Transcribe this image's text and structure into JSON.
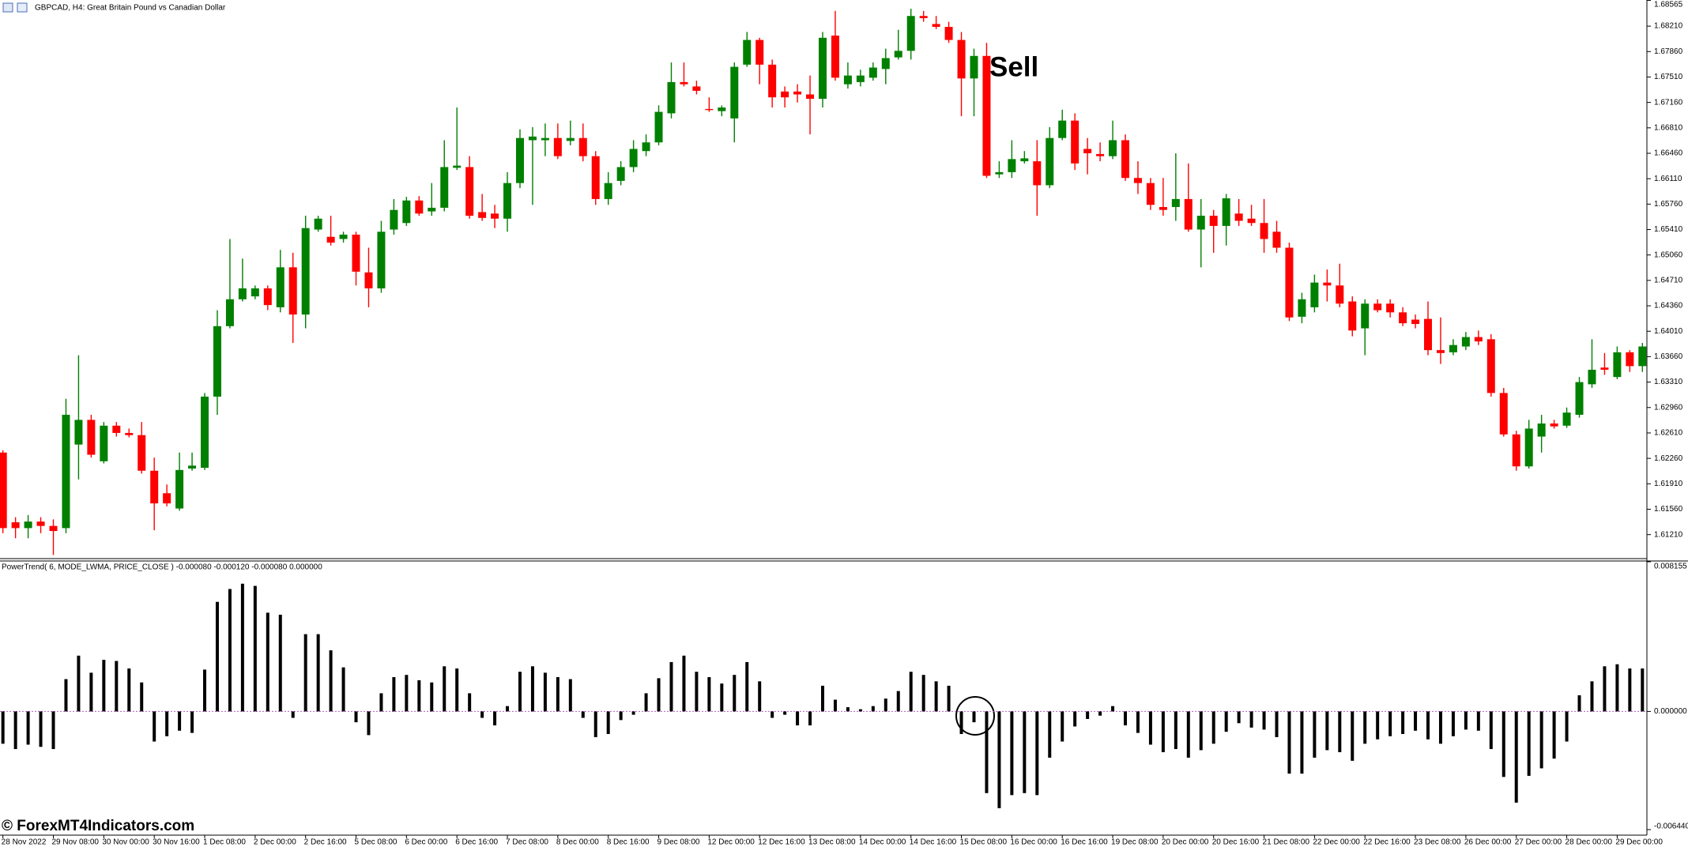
{
  "chart_data": [
    {
      "type": "candlestick",
      "title": "GBPCAD, H4:  Great Britain Pound vs Canadian Dollar",
      "annotation": "Sell",
      "up_color": "#008000",
      "down_color": "#ff0000",
      "categories": [
        "28 Nov 2022",
        null,
        null,
        null,
        "29 Nov 08:00",
        null,
        null,
        null,
        "30 Nov 00:00",
        null,
        null,
        null,
        "30 Nov 16:00",
        null,
        null,
        null,
        "1 Dec 08:00",
        null,
        null,
        null,
        "2 Dec 00:00",
        null,
        null,
        null,
        "2 Dec 16:00",
        null,
        null,
        null,
        "5 Dec 08:00",
        null,
        null,
        null,
        "6 Dec 00:00",
        null,
        null,
        null,
        "6 Dec 16:00",
        null,
        null,
        null,
        "7 Dec 08:00",
        null,
        null,
        null,
        "8 Dec 00:00",
        null,
        null,
        null,
        "8 Dec 16:00",
        null,
        null,
        null,
        "9 Dec 08:00",
        null,
        null,
        null,
        "12 Dec 00:00",
        null,
        null,
        null,
        "12 Dec 16:00",
        null,
        null,
        null,
        "13 Dec 08:00",
        null,
        null,
        null,
        "14 Dec 00:00",
        null,
        null,
        null,
        "14 Dec 16:00",
        null,
        null,
        null,
        "15 Dec 08:00",
        null,
        null,
        null,
        "16 Dec 00:00",
        null,
        null,
        null,
        "16 Dec 16:00",
        null,
        null,
        null,
        "19 Dec 08:00",
        null,
        null,
        null,
        "20 Dec 00:00",
        null,
        null,
        null,
        "20 Dec 16:00",
        null,
        null,
        null,
        "21 Dec 08:00",
        null,
        null,
        null,
        "22 Dec 00:00",
        null,
        null,
        null,
        "22 Dec 16:00",
        null,
        null,
        null,
        "23 Dec 08:00",
        null,
        null,
        null,
        "26 Dec 00:00",
        null,
        null,
        null,
        "27 Dec 00:00",
        null,
        null,
        null,
        "28 Dec 00:00",
        null,
        null,
        null,
        "29 Dec 00:00",
        null,
        null
      ],
      "open": [
        1.6234,
        1.6138,
        1.613,
        1.6139,
        1.6133,
        1.613,
        1.6245,
        1.6279,
        1.6222,
        1.6271,
        1.6261,
        1.6258,
        1.6209,
        1.6178,
        1.6157,
        1.6212,
        1.6213,
        1.6311,
        1.6408,
        1.6445,
        1.6449,
        1.646,
        1.6434,
        1.6489,
        1.6424,
        1.6541,
        1.6531,
        1.6528,
        1.6534,
        1.6482,
        1.646,
        1.6541,
        1.655,
        1.6581,
        1.6566,
        1.6571,
        1.6626,
        1.6627,
        1.6565,
        1.6563,
        1.6556,
        1.6605,
        1.6664,
        1.6664,
        1.6667,
        1.6663,
        1.6667,
        1.6642,
        1.6583,
        1.6608,
        1.6627,
        1.6649,
        1.6661,
        1.6701,
        1.6744,
        1.6738,
        1.6707,
        1.6704,
        1.6694,
        1.6768,
        1.6802,
        1.6768,
        1.6731,
        1.6731,
        1.6727,
        1.6721,
        1.6808,
        1.6741,
        1.6744,
        1.675,
        1.6762,
        1.6778,
        1.6787,
        1.6835,
        1.6824,
        1.682,
        1.6802,
        1.6749,
        1.678,
        1.6617,
        1.662,
        1.6635,
        1.6635,
        1.6602,
        1.6667,
        1.6691,
        1.6652,
        1.6645,
        1.6642,
        1.6664,
        1.6612,
        1.6605,
        1.6572,
        1.6572,
        1.6583,
        1.6541,
        1.656,
        1.6546,
        1.6563,
        1.6556,
        1.655,
        1.6538,
        1.6516,
        1.6421,
        1.6434,
        1.6468,
        1.6464,
        1.6442,
        1.6405,
        1.6439,
        1.6439,
        1.6427,
        1.6417,
        1.6418,
        1.6375,
        1.6372,
        1.638,
        1.6393,
        1.639,
        1.6316,
        1.6259,
        1.6215,
        1.6256,
        1.6274,
        1.6271,
        1.6286,
        1.6328,
        1.6351,
        1.6338,
        1.6372,
        1.6353
      ],
      "high": [
        1.6237,
        1.6145,
        1.6148,
        1.6145,
        1.6142,
        1.6308,
        1.6368,
        1.6286,
        1.6276,
        1.6276,
        1.6267,
        1.6276,
        1.6227,
        1.619,
        1.6234,
        1.6234,
        1.6316,
        1.643,
        1.6528,
        1.6501,
        1.6464,
        1.6464,
        1.6513,
        1.6509,
        1.656,
        1.656,
        1.656,
        1.6538,
        1.6538,
        1.6516,
        1.6553,
        1.6583,
        1.6586,
        1.6587,
        1.6605,
        1.6664,
        1.6709,
        1.6642,
        1.659,
        1.6575,
        1.662,
        1.6679,
        1.6682,
        1.6687,
        1.6687,
        1.6691,
        1.6687,
        1.6649,
        1.662,
        1.6635,
        1.6664,
        1.6672,
        1.6712,
        1.6771,
        1.6771,
        1.6746,
        1.6723,
        1.6712,
        1.6771,
        1.6813,
        1.6805,
        1.6775,
        1.6738,
        1.6741,
        1.6753,
        1.6813,
        1.6842,
        1.6771,
        1.6761,
        1.6771,
        1.679,
        1.6816,
        1.6845,
        1.6842,
        1.6835,
        1.6827,
        1.6813,
        1.679,
        1.6798,
        1.6635,
        1.6664,
        1.6649,
        1.6664,
        1.6682,
        1.6706,
        1.6701,
        1.6667,
        1.6661,
        1.6691,
        1.6672,
        1.6635,
        1.6612,
        1.6612,
        1.6646,
        1.6632,
        1.6583,
        1.6568,
        1.659,
        1.6583,
        1.6575,
        1.6583,
        1.6553,
        1.6523,
        1.6454,
        1.6479,
        1.6486,
        1.6494,
        1.6449,
        1.6445,
        1.6445,
        1.6445,
        1.6434,
        1.6424,
        1.6442,
        1.642,
        1.639,
        1.64,
        1.6402,
        1.6397,
        1.6323,
        1.6264,
        1.6279,
        1.6286,
        1.6279,
        1.6296,
        1.6338,
        1.639,
        1.6371,
        1.638,
        1.6375,
        1.6385
      ],
      "low": [
        1.6123,
        1.6116,
        1.6116,
        1.6123,
        1.6093,
        1.6123,
        1.6197,
        1.6227,
        1.6219,
        1.6256,
        1.6255,
        1.6205,
        1.6127,
        1.616,
        1.6154,
        1.6209,
        1.621,
        1.6286,
        1.6405,
        1.6442,
        1.6445,
        1.643,
        1.6427,
        1.6385,
        1.6405,
        1.6538,
        1.6519,
        1.6523,
        1.6464,
        1.6434,
        1.6454,
        1.6534,
        1.6546,
        1.656,
        1.656,
        1.6566,
        1.6623,
        1.6556,
        1.6553,
        1.6543,
        1.6538,
        1.6598,
        1.6575,
        1.6642,
        1.6638,
        1.6657,
        1.6635,
        1.6575,
        1.6575,
        1.6602,
        1.662,
        1.6642,
        1.6657,
        1.6694,
        1.6738,
        1.6727,
        1.6703,
        1.6697,
        1.6661,
        1.6765,
        1.6741,
        1.6709,
        1.6709,
        1.6716,
        1.6672,
        1.6709,
        1.6746,
        1.6735,
        1.6738,
        1.6746,
        1.6741,
        1.6775,
        1.6775,
        1.6827,
        1.6817,
        1.6798,
        1.6697,
        1.6697,
        1.6612,
        1.6612,
        1.6612,
        1.6632,
        1.656,
        1.6598,
        1.6664,
        1.6623,
        1.6617,
        1.6635,
        1.6638,
        1.6608,
        1.659,
        1.6568,
        1.656,
        1.6553,
        1.6538,
        1.6489,
        1.6509,
        1.6519,
        1.6546,
        1.6546,
        1.6509,
        1.6509,
        1.6415,
        1.6412,
        1.6427,
        1.6442,
        1.6434,
        1.6394,
        1.6368,
        1.6427,
        1.642,
        1.6408,
        1.6405,
        1.6368,
        1.6356,
        1.6368,
        1.6375,
        1.6382,
        1.6311,
        1.6256,
        1.6209,
        1.6212,
        1.6234,
        1.6267,
        1.6268,
        1.6282,
        1.6323,
        1.6341,
        1.6335,
        1.6345,
        1.6345
      ],
      "close": [
        1.613,
        1.613,
        1.6139,
        1.6133,
        1.6126,
        1.6286,
        1.6279,
        1.6231,
        1.6271,
        1.6261,
        1.6258,
        1.6209,
        1.6164,
        1.6164,
        1.621,
        1.6216,
        1.6311,
        1.6408,
        1.6445,
        1.646,
        1.646,
        1.6437,
        1.6489,
        1.6424,
        1.6543,
        1.6556,
        1.6523,
        1.6534,
        1.6483,
        1.646,
        1.6538,
        1.6568,
        1.6581,
        1.6563,
        1.6571,
        1.6627,
        1.6629,
        1.656,
        1.6557,
        1.6556,
        1.6605,
        1.6667,
        1.6669,
        1.6667,
        1.6642,
        1.6667,
        1.6642,
        1.6583,
        1.6605,
        1.6627,
        1.6652,
        1.6661,
        1.6703,
        1.6744,
        1.6741,
        1.6732,
        1.6706,
        1.6709,
        1.6765,
        1.6802,
        1.6768,
        1.6723,
        1.6723,
        1.6727,
        1.6721,
        1.6805,
        1.675,
        1.6753,
        1.6753,
        1.6764,
        1.6777,
        1.6787,
        1.6835,
        1.6832,
        1.682,
        1.6802,
        1.6749,
        1.678,
        1.6615,
        1.662,
        1.6638,
        1.6639,
        1.6602,
        1.6667,
        1.6691,
        1.6632,
        1.6646,
        1.6642,
        1.6664,
        1.6612,
        1.6605,
        1.6575,
        1.6568,
        1.6583,
        1.6541,
        1.656,
        1.6546,
        1.6584,
        1.6553,
        1.655,
        1.6528,
        1.6516,
        1.642,
        1.6445,
        1.6468,
        1.6464,
        1.6439,
        1.6402,
        1.6439,
        1.643,
        1.6427,
        1.6412,
        1.6411,
        1.6375,
        1.6371,
        1.6382,
        1.6393,
        1.6387,
        1.6316,
        1.6259,
        1.6215,
        1.6267,
        1.6274,
        1.627,
        1.6289,
        1.6331,
        1.6348,
        1.6348,
        1.6372,
        1.6353,
        1.638
      ],
      "ylim": [
        1.6088,
        1.6857
      ],
      "yticks": [
        1.68565,
        {
          "value": 1.6821,
          "label": "1.68210"
        },
        {
          "value": 1.6786,
          "label": "1.67860"
        },
        {
          "value": 1.6751,
          "label": "1.67510"
        },
        {
          "value": 1.6716,
          "label": "1.67160"
        },
        {
          "value": 1.6681,
          "label": "1.66810"
        },
        {
          "value": 1.6646,
          "label": "1.66460"
        },
        {
          "value": 1.6611,
          "label": "1.66110"
        },
        {
          "value": 1.6576,
          "label": "1.65760"
        },
        {
          "value": 1.6541,
          "label": "1.65410"
        },
        {
          "value": 1.6506,
          "label": "1.65060"
        },
        {
          "value": 1.6471,
          "label": "1.64710"
        },
        {
          "value": 1.6436,
          "label": "1.64360"
        },
        {
          "value": 1.6401,
          "label": "1.64010"
        },
        {
          "value": 1.6366,
          "label": "1.63660"
        },
        {
          "value": 1.6331,
          "label": "1.63310"
        },
        {
          "value": 1.6296,
          "label": "1.62960"
        },
        {
          "value": 1.6261,
          "label": "1.62610"
        },
        {
          "value": 1.6226,
          "label": "1.62260"
        },
        {
          "value": 1.6191,
          "label": "1.61910"
        },
        {
          "value": 1.6156,
          "label": "1.61560"
        },
        {
          "value": 1.6121,
          "label": "1.61210"
        }
      ]
    },
    {
      "type": "bar",
      "title": "PowerTrend( 6, MODE_LWMA, PRICE_CLOSE ) -0.000080 -0.000120 -0.000080 0.000000",
      "color": "#000000",
      "values": [
        -0.00176,
        -0.00205,
        -0.00181,
        -0.00193,
        -0.00205,
        0.00176,
        0.00304,
        0.00211,
        0.00281,
        0.00275,
        0.00234,
        0.00158,
        -0.00164,
        -0.00135,
        -0.00105,
        -0.00117,
        0.00228,
        0.00597,
        0.00667,
        0.00696,
        0.00684,
        0.00538,
        0.00527,
        -0.00035,
        0.00421,
        0.00421,
        0.00333,
        0.0024,
        -0.00059,
        -0.00129,
        0.00099,
        0.00187,
        0.00199,
        0.0017,
        0.00158,
        0.00246,
        0.00234,
        0.00099,
        -0.00035,
        -0.00076,
        0.00029,
        0.00216,
        0.00246,
        0.00211,
        0.00187,
        0.00176,
        -0.00035,
        -0.0014,
        -0.00123,
        -0.00047,
        -0.00018,
        0.00099,
        0.00181,
        0.00269,
        0.00304,
        0.00216,
        0.00187,
        0.00152,
        0.00199,
        0.00269,
        0.00164,
        -0.00035,
        -0.00018,
        -0.00076,
        -0.00076,
        0.0014,
        0.00064,
        0.00023,
        0.00012,
        0.00029,
        0.0007,
        0.00111,
        0.00216,
        0.00199,
        0.00164,
        0.0014,
        -0.00123,
        -0.00059,
        -0.00445,
        -0.00527,
        -0.00456,
        -0.00445,
        -0.00456,
        -0.00252,
        -0.00164,
        -0.00082,
        -0.00041,
        -0.00023,
        0.00029,
        -0.00076,
        -0.00117,
        -0.00181,
        -0.00222,
        -0.00205,
        -0.00252,
        -0.00211,
        -0.00176,
        -0.00111,
        -0.00064,
        -0.00088,
        -0.00099,
        -0.0014,
        -0.00339,
        -0.00339,
        -0.00252,
        -0.00211,
        -0.00222,
        -0.00269,
        -0.00176,
        -0.00152,
        -0.00135,
        -0.00123,
        -0.00105,
        -0.00152,
        -0.00176,
        -0.00135,
        -0.00099,
        -0.00105,
        -0.00205,
        -0.00357,
        -0.00497,
        -0.00351,
        -0.0031,
        -0.00257,
        -0.00164,
        0.00088,
        0.00164,
        0.00246,
        0.00257,
        0.00234,
        0.00234
      ],
      "ylim": [
        -0.00644,
        0.008155
      ],
      "yticks": [
        0.008155,
        {
          "value": 0,
          "label": "0.000000"
        },
        {
          "value": -0.00644,
          "label": "-0.006440"
        }
      ]
    }
  ],
  "watermark": "© ForexMT4Indicators.com"
}
